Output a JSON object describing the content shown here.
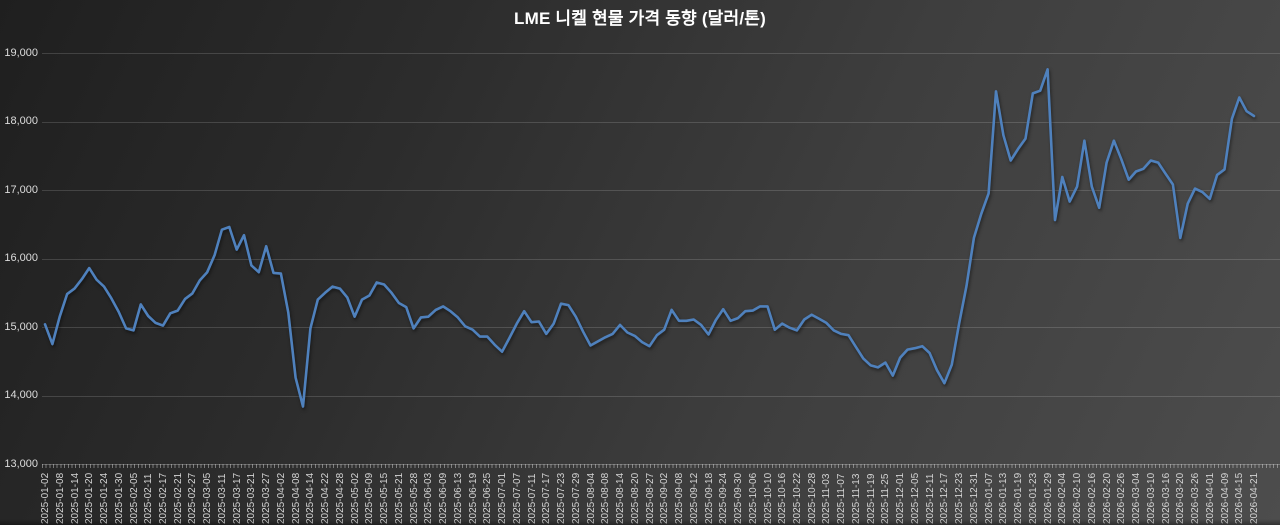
{
  "title": "LME 니켈 현물 가격 동향 (달러/톤)",
  "chart_data": {
    "type": "line",
    "title": "LME 니켈 현물 가격 동향 (달러/톤)",
    "series_name": "LME 니켈 현물 가격",
    "unit": "달러/톤",
    "line_color": "#4f81bd",
    "grid_color": "rgba(255,255,255,0.15)",
    "text_color": "#d4d4d4",
    "background_from": "#1f1f1f",
    "background_to": "#4d4d4d",
    "legend": "none",
    "grid": "horizontal",
    "y_axis": {
      "min": 13000,
      "max": 19000,
      "step": 1000,
      "tick_labels": [
        "19,000",
        "18,000",
        "17,000",
        "16,000",
        "15,000",
        "14,000",
        "13,000"
      ]
    },
    "x_tick_labels": [
      "2025-01-02",
      "2025-01-08",
      "2025-01-14",
      "2025-01-20",
      "2025-01-24",
      "2025-01-30",
      "2025-02-05",
      "2025-02-11",
      "2025-02-17",
      "2025-02-21",
      "2025-02-27",
      "2025-03-05",
      "2025-03-11",
      "2025-03-17",
      "2025-03-21",
      "2025-03-27",
      "2025-04-02",
      "2025-04-08",
      "2025-04-14",
      "2025-04-22",
      "2025-04-28",
      "2025-05-02",
      "2025-05-09",
      "2025-05-15",
      "2025-05-21",
      "2025-05-28",
      "2025-06-03",
      "2025-06-09",
      "2025-06-13",
      "2025-06-19",
      "2025-06-25",
      "2025-07-01",
      "2025-07-07",
      "2025-07-11",
      "2025-07-17",
      "2025-07-23",
      "2025-07-29",
      "2025-08-04",
      "2025-08-08",
      "2025-08-14",
      "2025-08-20",
      "2025-08-27",
      "2025-09-02",
      "2025-09-08",
      "2025-09-12",
      "2025-09-18",
      "2025-09-24",
      "2025-09-30",
      "2025-10-06",
      "2025-10-10",
      "2025-10-16",
      "2025-10-22",
      "2025-10-28",
      "2025-11-03",
      "2025-11-07",
      "2025-11-13",
      "2025-11-19",
      "2025-11-25",
      "2025-12-01",
      "2025-12-05",
      "2025-12-11",
      "2025-12-17",
      "2025-12-23",
      "2025-12-31",
      "2026-01-07",
      "2026-01-13",
      "2026-01-19",
      "2026-01-23",
      "2026-01-29",
      "2026-02-04",
      "2026-02-10",
      "2026-02-16",
      "2026-02-20",
      "2026-02-26",
      "2026-03-04",
      "2026-03-10",
      "2026-03-16",
      "2026-03-20",
      "2026-03-26",
      "2026-04-01",
      "2026-04-09",
      "2026-04-15",
      "2026-04-21"
    ],
    "samples_per_label_interval": 2,
    "values": [
      15040,
      14750,
      15150,
      15480,
      15560,
      15700,
      15860,
      15690,
      15590,
      15420,
      15220,
      14980,
      14950,
      15330,
      15160,
      15060,
      15020,
      15200,
      15240,
      15410,
      15490,
      15680,
      15800,
      16050,
      16420,
      16460,
      16130,
      16340,
      15900,
      15800,
      16180,
      15790,
      15780,
      15210,
      14260,
      13840,
      14980,
      15400,
      15500,
      15590,
      15560,
      15430,
      15150,
      15400,
      15460,
      15650,
      15620,
      15500,
      15350,
      15290,
      14980,
      15140,
      15150,
      15250,
      15300,
      15230,
      15140,
      15010,
      14960,
      14860,
      14860,
      14740,
      14640,
      14840,
      15050,
      15230,
      15070,
      15080,
      14900,
      15050,
      15340,
      15320,
      15150,
      14930,
      14730,
      14790,
      14850,
      14900,
      15030,
      14920,
      14870,
      14780,
      14720,
      14880,
      14960,
      15250,
      15090,
      15090,
      15110,
      15030,
      14890,
      15100,
      15260,
      15090,
      15130,
      15230,
      15240,
      15300,
      15300,
      14960,
      15050,
      14990,
      14950,
      15110,
      15180,
      15120,
      15060,
      14950,
      14900,
      14880,
      14710,
      14540,
      14440,
      14410,
      14480,
      14290,
      14550,
      14670,
      14690,
      14720,
      14620,
      14370,
      14180,
      14450,
      15050,
      15600,
      16300,
      16650,
      16950,
      18440,
      17800,
      17430,
      17600,
      17750,
      18410,
      18450,
      18760,
      16560,
      17190,
      16830,
      17050,
      17720,
      17050,
      16740,
      17400,
      17720,
      17450,
      17150,
      17270,
      17310,
      17430,
      17400,
      17240,
      17080,
      16300,
      16800,
      17020,
      16970,
      16870,
      17220,
      17300,
      18040,
      18350,
      18150,
      18080
    ]
  }
}
